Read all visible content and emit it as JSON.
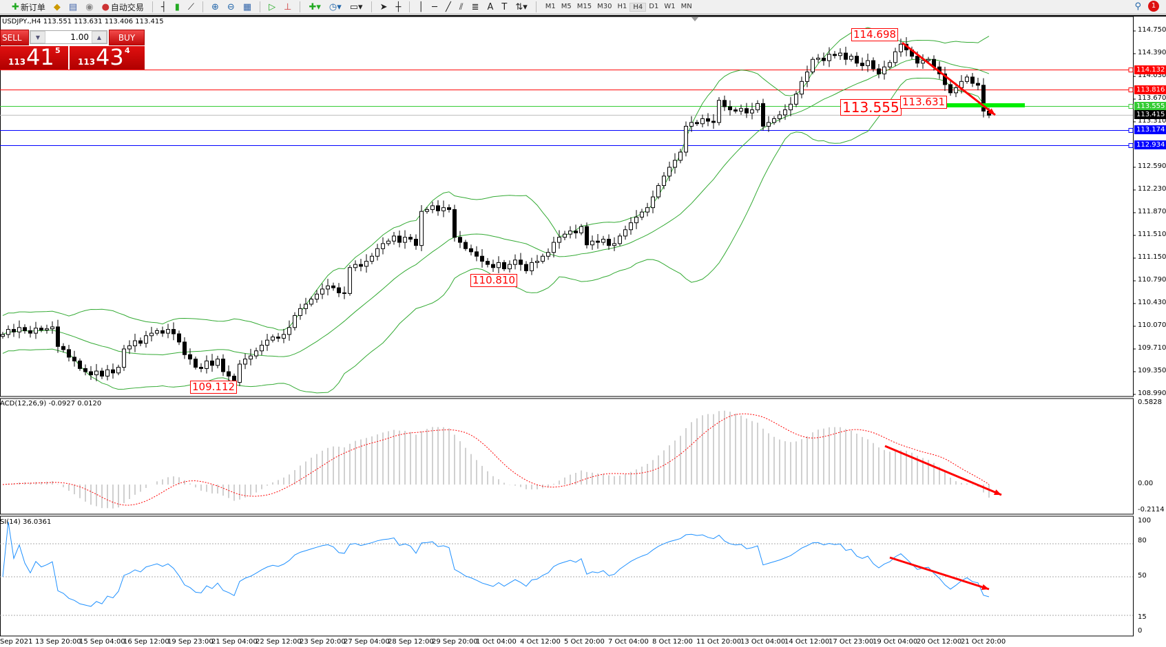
{
  "toolbar": {
    "new_order": "新订单",
    "auto_trading": "自动交易",
    "timeframes": [
      "M1",
      "M5",
      "M15",
      "M30",
      "H1",
      "H4",
      "D1",
      "W1",
      "MN"
    ],
    "active_timeframe": "H4",
    "notification_count": "1",
    "icons": [
      "new-order-icon",
      "market-watch-icon",
      "navigator-icon",
      "signals-icon",
      "auto-trading-icon",
      "bar-chart-icon",
      "candlestick-icon",
      "line-chart-icon",
      "zoom-in-icon",
      "zoom-out-icon",
      "tile-windows-icon",
      "chart-shift-icon",
      "autoscroll-icon",
      "indicators-icon",
      "periods-icon",
      "templates-icon",
      "cursor-icon",
      "crosshair-icon",
      "vertical-line-icon",
      "horizontal-line-icon",
      "trendline-icon",
      "equidistant-channel-icon",
      "fibonacci-icon",
      "text-icon",
      "text-label-icon",
      "arrows-icon"
    ]
  },
  "symbol_info": "USDJPY،,H4  113.551 113.631 113.406 113.415",
  "trade_panel": {
    "sell_label": "SELL",
    "buy_label": "BUY",
    "lot": "1.00",
    "sell_price": {
      "small": "113",
      "big": "41",
      "tiny": "5"
    },
    "buy_price": {
      "small": "113",
      "big": "43",
      "tiny": "4"
    }
  },
  "price_axis": [
    "114.750",
    "114.390",
    "114.030",
    "113.670",
    "113.310",
    "112.590",
    "112.230",
    "111.870",
    "111.510",
    "111.150",
    "110.790",
    "110.430",
    "110.070",
    "109.710",
    "109.350",
    "108.990"
  ],
  "horizontal_lines": [
    {
      "price": "114.132",
      "color": "#ff0000"
    },
    {
      "price": "113.816",
      "color": "#ff0000"
    },
    {
      "price": "113.555",
      "color": "#33cc33"
    },
    {
      "price": "113.415",
      "color": "#000000"
    },
    {
      "price": "113.174",
      "color": "#0000ff"
    },
    {
      "price": "112.934",
      "color": "#0000ff"
    }
  ],
  "annotations": [
    "114.698",
    "113.555",
    "113.631",
    "110.810",
    "109.112"
  ],
  "macd": {
    "label": "ACD(12,26,9) -0.0927 0.0120",
    "axis": [
      "0.5828",
      "0.00",
      "-0.2114"
    ]
  },
  "rsi": {
    "label": "SI(14) 36.0361",
    "axis": [
      "100",
      "80",
      "50",
      "15",
      "0"
    ]
  },
  "date_axis": [
    "Sep 2021",
    "13 Sep 20:00",
    "15 Sep 04:00",
    "16 Sep 12:00",
    "19 Sep 23:00",
    "21 Sep 04:00",
    "22 Sep 12:00",
    "23 Sep 20:00",
    "27 Sep 04:00",
    "28 Sep 12:00",
    "29 Sep 20:00",
    "1 Oct 04:00",
    "4 Oct 12:00",
    "5 Oct 20:00",
    "7 Oct 04:00",
    "8 Oct 12:00",
    "11 Oct 20:00",
    "13 Oct 04:00",
    "14 Oct 12:00",
    "17 Oct 23:00",
    "19 Oct 04:00",
    "20 Oct 12:00",
    "21 Oct 20:00"
  ],
  "chart_data": {
    "type": "candlestick",
    "symbol": "USDJPY",
    "timeframe": "H4",
    "ylim": [
      108.99,
      114.75
    ],
    "closes": [
      109.94,
      110.02,
      109.98,
      110.05,
      110.0,
      109.96,
      110.04,
      110.01,
      110.03,
      110.06,
      109.75,
      109.7,
      109.58,
      109.52,
      109.4,
      109.35,
      109.3,
      109.36,
      109.28,
      109.38,
      109.33,
      109.42,
      109.71,
      109.76,
      109.84,
      109.8,
      109.92,
      109.96,
      110.0,
      109.96,
      110.02,
      109.95,
      109.82,
      109.62,
      109.55,
      109.42,
      109.4,
      109.52,
      109.45,
      109.55,
      109.35,
      109.28,
      109.18,
      109.47,
      109.55,
      109.6,
      109.68,
      109.77,
      109.85,
      109.9,
      109.88,
      109.94,
      110.05,
      110.24,
      110.35,
      110.42,
      110.5,
      110.58,
      110.66,
      110.71,
      110.68,
      110.6,
      110.59,
      111.0,
      111.05,
      111.02,
      111.1,
      111.18,
      111.3,
      111.38,
      111.42,
      111.5,
      111.4,
      111.48,
      111.45,
      111.35,
      111.89,
      111.92,
      111.98,
      111.9,
      111.95,
      111.92,
      111.48,
      111.4,
      111.3,
      111.25,
      111.18,
      111.1,
      111.05,
      111.0,
      111.08,
      110.98,
      111.05,
      111.12,
      111.05,
      110.95,
      111.08,
      111.1,
      111.18,
      111.24,
      111.4,
      111.48,
      111.53,
      111.58,
      111.55,
      111.65,
      111.36,
      111.42,
      111.4,
      111.45,
      111.35,
      111.38,
      111.5,
      111.6,
      111.71,
      111.8,
      111.88,
      111.95,
      112.12,
      112.3,
      112.45,
      112.59,
      112.7,
      112.83,
      113.24,
      113.3,
      113.28,
      113.36,
      113.32,
      113.3,
      113.65,
      113.55,
      113.5,
      113.48,
      113.52,
      113.45,
      113.5,
      113.6,
      113.24,
      113.3,
      113.36,
      113.42,
      113.5,
      113.59,
      113.75,
      113.95,
      114.1,
      114.3,
      114.32,
      114.28,
      114.38,
      114.36,
      114.4,
      114.3,
      114.35,
      114.24,
      114.2,
      114.28,
      114.15,
      114.07,
      114.18,
      114.25,
      114.42,
      114.54,
      114.45,
      114.35,
      114.24,
      114.28,
      114.3,
      114.18,
      114.07,
      113.9,
      113.77,
      113.85,
      113.95,
      114.02,
      113.92,
      113.89,
      113.48,
      113.415
    ],
    "indicators": {
      "bollinger": {
        "period": 20,
        "deviation": 2,
        "color": "#33aa33"
      },
      "macd": {
        "fast": 12,
        "slow": 26,
        "signal": 9,
        "hist_color": "#c0c0c0",
        "signal_color": "#ff0000"
      },
      "rsi": {
        "period": 14,
        "color": "#1e90ff",
        "levels": [
          80,
          50,
          15
        ]
      }
    }
  },
  "colors": {
    "arrow": "#ff0000",
    "support_bar": "#00ee00"
  }
}
